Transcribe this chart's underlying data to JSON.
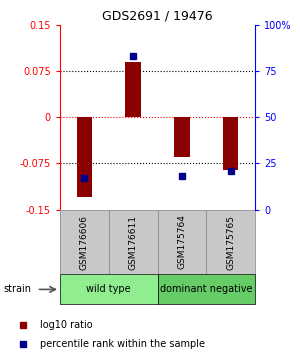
{
  "title": "GDS2691 / 19476",
  "samples": [
    "GSM176606",
    "GSM176611",
    "GSM175764",
    "GSM175765"
  ],
  "log10_ratio": [
    -0.13,
    0.09,
    -0.065,
    -0.085
  ],
  "percentile_rank": [
    17,
    83,
    18,
    21
  ],
  "ylim_left": [
    -0.15,
    0.15
  ],
  "ylim_right": [
    0,
    100
  ],
  "yticks_left": [
    -0.15,
    -0.075,
    0,
    0.075,
    0.15
  ],
  "yticks_right": [
    0,
    25,
    50,
    75,
    100
  ],
  "ytick_labels_left": [
    "-0.15",
    "-0.075",
    "0",
    "0.075",
    "0.15"
  ],
  "ytick_labels_right": [
    "0",
    "25",
    "50",
    "75",
    "100%"
  ],
  "hlines_black": [
    -0.075,
    0.075
  ],
  "hline_red": 0,
  "bar_color": "#8B0000",
  "dot_color": "#00008B",
  "groups": [
    {
      "label": "wild type",
      "indices": [
        0,
        1
      ],
      "color": "#90EE90"
    },
    {
      "label": "dominant negative",
      "indices": [
        2,
        3
      ],
      "color": "#66CC66"
    }
  ],
  "strain_label": "strain",
  "legend_red": "log10 ratio",
  "legend_blue": "percentile rank within the sample",
  "background_color": "#ffffff",
  "plot_bg_color": "#ffffff",
  "sample_box_color": "#c8c8c8",
  "sample_box_edge": "#888888"
}
